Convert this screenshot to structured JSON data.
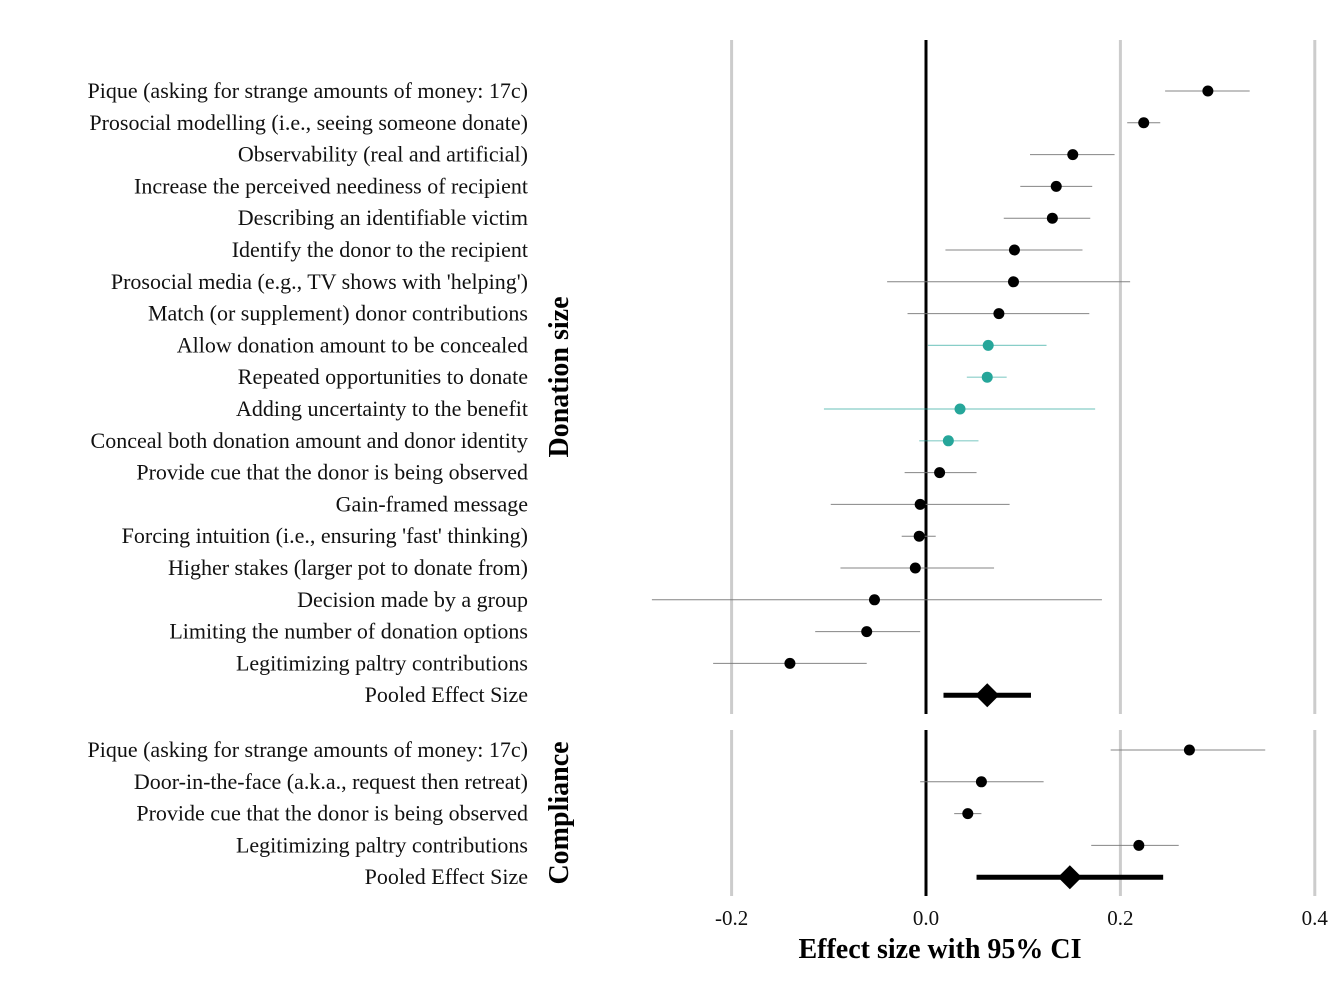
{
  "chart_data": {
    "type": "forest",
    "xlabel": "Effect size with 95% CI",
    "xlim": [
      -0.2,
      0.4
    ],
    "xticks": [
      -0.2,
      0.0,
      0.2,
      0.4
    ],
    "xtick_labels": [
      "-0.2",
      "0.0",
      "0.2",
      "0.4"
    ],
    "grid": true,
    "reference_line": 0,
    "colors": {
      "default": "#000000",
      "highlight": "#26a69a",
      "grid": "#cccccc"
    },
    "panels": [
      {
        "facet": "Donation size",
        "rows": [
          {
            "label": "Pique (asking for strange amounts of money: 17c)",
            "estimate": 0.29,
            "ci_low": 0.246,
            "ci_high": 0.333,
            "highlight": false
          },
          {
            "label": "Prosocial modelling (i.e., seeing someone donate)",
            "estimate": 0.224,
            "ci_low": 0.207,
            "ci_high": 0.241,
            "highlight": false
          },
          {
            "label": "Observability (real and artificial)",
            "estimate": 0.151,
            "ci_low": 0.107,
            "ci_high": 0.194,
            "highlight": false
          },
          {
            "label": "Increase the perceived neediness of recipient",
            "estimate": 0.134,
            "ci_low": 0.097,
            "ci_high": 0.171,
            "highlight": false
          },
          {
            "label": "Describing an identifiable victim",
            "estimate": 0.13,
            "ci_low": 0.08,
            "ci_high": 0.169,
            "highlight": false
          },
          {
            "label": "Identify the donor to the recipient",
            "estimate": 0.091,
            "ci_low": 0.02,
            "ci_high": 0.161,
            "highlight": false
          },
          {
            "label": "Prosocial media (e.g., TV shows with 'helping')",
            "estimate": 0.09,
            "ci_low": -0.04,
            "ci_high": 0.21,
            "highlight": false
          },
          {
            "label": "Match (or supplement) donor contributions",
            "estimate": 0.075,
            "ci_low": -0.019,
            "ci_high": 0.168,
            "highlight": false
          },
          {
            "label": "Allow donation amount to be concealed",
            "estimate": 0.064,
            "ci_low": 0.002,
            "ci_high": 0.124,
            "highlight": true
          },
          {
            "label": "Repeated opportunities to donate",
            "estimate": 0.063,
            "ci_low": 0.042,
            "ci_high": 0.083,
            "highlight": true
          },
          {
            "label": "Adding uncertainty to the benefit",
            "estimate": 0.035,
            "ci_low": -0.105,
            "ci_high": 0.174,
            "highlight": true
          },
          {
            "label": "Conceal both donation amount and donor identity",
            "estimate": 0.023,
            "ci_low": -0.007,
            "ci_high": 0.054,
            "highlight": true
          },
          {
            "label": "Provide cue that the donor is being observed",
            "estimate": 0.014,
            "ci_low": -0.022,
            "ci_high": 0.052,
            "highlight": false
          },
          {
            "label": "Gain-framed message",
            "estimate": -0.006,
            "ci_low": -0.098,
            "ci_high": 0.086,
            "highlight": false
          },
          {
            "label": "Forcing intuition (i.e., ensuring 'fast' thinking)",
            "estimate": -0.007,
            "ci_low": -0.025,
            "ci_high": 0.01,
            "highlight": false
          },
          {
            "label": "Higher stakes (larger pot to donate from)",
            "estimate": -0.011,
            "ci_low": -0.088,
            "ci_high": 0.07,
            "highlight": false
          },
          {
            "label": "Decision made by a group",
            "estimate": -0.053,
            "ci_low": -0.282,
            "ci_high": 0.181,
            "highlight": false
          },
          {
            "label": "Limiting the number of donation options",
            "estimate": -0.061,
            "ci_low": -0.114,
            "ci_high": -0.006,
            "highlight": false
          },
          {
            "label": "Legitimizing paltry contributions",
            "estimate": -0.14,
            "ci_low": -0.219,
            "ci_high": -0.061,
            "highlight": false
          }
        ],
        "pooled": {
          "label": "Pooled Effect Size",
          "estimate": 0.063,
          "ci_low": 0.018,
          "ci_high": 0.108
        }
      },
      {
        "facet": "Compliance",
        "rows": [
          {
            "label": "Pique (asking for strange amounts of money: 17c)",
            "estimate": 0.271,
            "ci_low": 0.19,
            "ci_high": 0.349,
            "highlight": false
          },
          {
            "label": "Door-in-the-face (a.k.a., request then retreat)",
            "estimate": 0.057,
            "ci_low": -0.006,
            "ci_high": 0.121,
            "highlight": false
          },
          {
            "label": "Provide cue that the donor is being observed",
            "estimate": 0.043,
            "ci_low": 0.029,
            "ci_high": 0.057,
            "highlight": false
          },
          {
            "label": "Legitimizing paltry contributions",
            "estimate": 0.219,
            "ci_low": 0.17,
            "ci_high": 0.26,
            "highlight": false
          }
        ],
        "pooled": {
          "label": "Pooled Effect Size",
          "estimate": 0.148,
          "ci_low": 0.052,
          "ci_high": 0.244
        }
      }
    ]
  }
}
